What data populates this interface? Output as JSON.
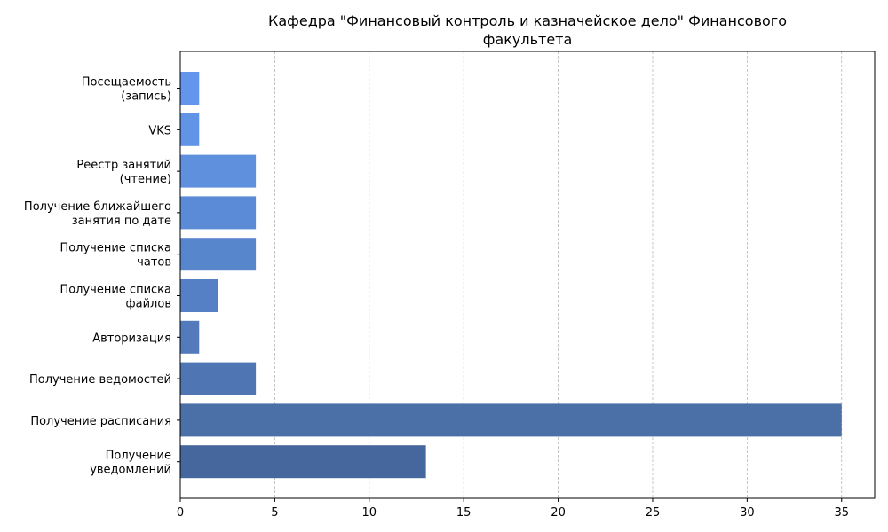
{
  "chart_data": {
    "type": "bar",
    "orientation": "horizontal",
    "title": "Кафедра \"Финансовый контроль и казначейское дело\" Финансового факультета",
    "title_lines": [
      "Кафедра \"Финансовый контроль и казначейское дело\" Финансового",
      "факультета"
    ],
    "xlabel": "",
    "ylabel": "",
    "xlim": [
      0,
      36.75
    ],
    "x_ticks": [
      "0",
      "5",
      "10",
      "15",
      "20",
      "25",
      "30",
      "35"
    ],
    "grid": "x-dashed",
    "categories": [
      [
        "Посещаемость",
        "(запись)"
      ],
      [
        "VKS"
      ],
      [
        "Реестр занятий",
        "(чтение)"
      ],
      [
        "Получение ближайшего",
        "занятия по дате"
      ],
      [
        "Получение списка",
        "чатов"
      ],
      [
        "Получение списка",
        "файлов"
      ],
      [
        "Авторизация"
      ],
      [
        "Получение ведомостей"
      ],
      [
        "Получение расписания"
      ],
      [
        "Получение",
        "уведомлений"
      ]
    ],
    "values": [
      1,
      1,
      4,
      4,
      4,
      2,
      1,
      4,
      35,
      13
    ],
    "colors": [
      "#6495ED",
      "#6193E6",
      "#5F90DE",
      "#5B8BD6",
      "#5886CD",
      "#5680C5",
      "#537BBC",
      "#4F76B2",
      "#4B70A8",
      "#46679E"
    ]
  }
}
